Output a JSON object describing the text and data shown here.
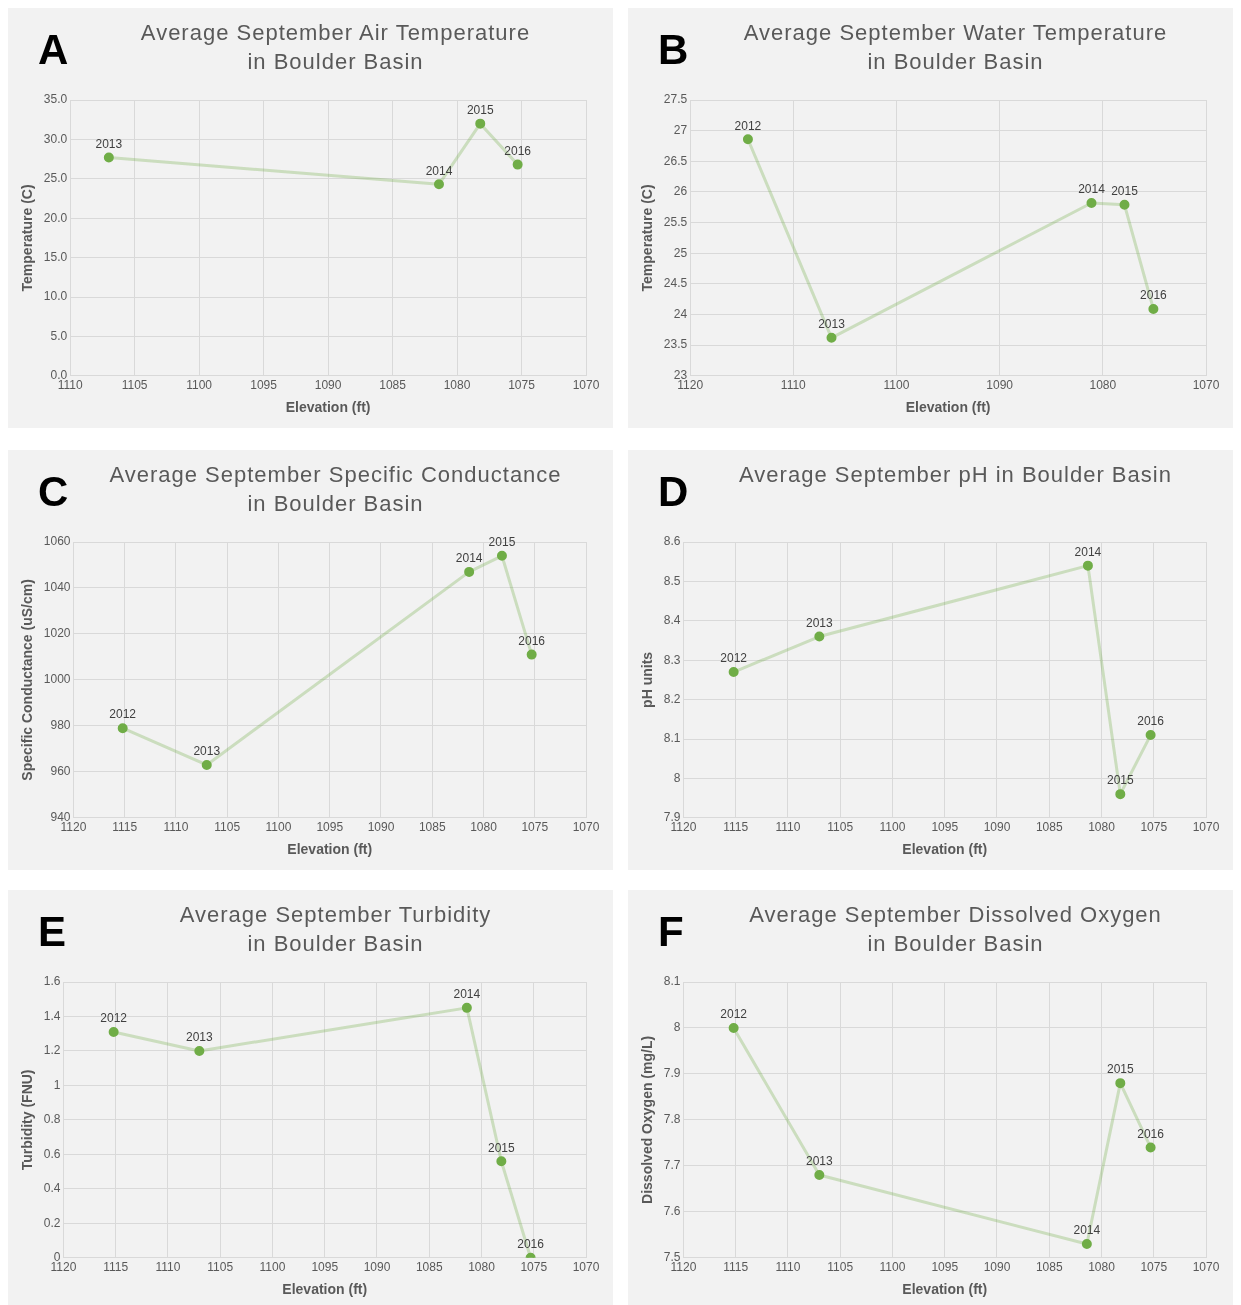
{
  "chart_data": [
    {
      "type": "line",
      "title": "Average September Air Temperature\nin Boulder Basin",
      "xlabel": "Elevation (ft)",
      "ylabel": "Temperature (C)",
      "xlim": [
        1110,
        1070
      ],
      "xticks": [
        1110,
        1105,
        1100,
        1095,
        1090,
        1085,
        1080,
        1075,
        1070
      ],
      "ylim": [
        0,
        35
      ],
      "yticks": [
        {
          "value": 0,
          "label": "0.0"
        },
        {
          "value": 5,
          "label": "5.0"
        },
        {
          "value": 10,
          "label": "10.0"
        },
        {
          "value": 15,
          "label": "15.0"
        },
        {
          "value": 20,
          "label": "20.0"
        },
        {
          "value": 25,
          "label": "25.0"
        },
        {
          "value": 30,
          "label": "30.0"
        },
        {
          "value": 35,
          "label": "35.0"
        }
      ],
      "grid": true,
      "marker": "circle",
      "line_style": "solid",
      "series": [
        {
          "color": "#70ad47",
          "x": [
            1107.0,
            1081.4,
            1078.2,
            1075.3
          ],
          "values": [
            27.7,
            24.3,
            32.0,
            26.8
          ]
        }
      ],
      "annotations": [
        "A",
        {
          "text": "2013",
          "x": 1107.0,
          "y": 27.7
        },
        {
          "text": "2014",
          "x": 1081.4,
          "y": 24.3
        },
        {
          "text": "2015",
          "x": 1078.2,
          "y": 32.0
        },
        {
          "text": "2016",
          "x": 1075.3,
          "y": 26.8
        }
      ]
    },
    {
      "type": "line",
      "title": "Average September Water Temperature\nin Boulder Basin",
      "xlabel": "Elevation (ft)",
      "ylabel": "Temperature (C)",
      "xlim": [
        1120,
        1070
      ],
      "xticks": [
        1120,
        1110,
        1100,
        1090,
        1080,
        1070
      ],
      "ylim": [
        23,
        27.5
      ],
      "yticks": [
        23,
        23.5,
        24,
        24.5,
        25,
        25.5,
        26,
        26.5,
        27,
        27.5
      ],
      "grid": true,
      "marker": "circle",
      "line_style": "solid",
      "series": [
        {
          "color": "#70ad47",
          "x": [
            1114.4,
            1106.3,
            1081.1,
            1077.9,
            1075.1
          ],
          "values": [
            26.86,
            23.62,
            25.82,
            25.79,
            24.09
          ]
        }
      ],
      "annotations": [
        "B",
        {
          "text": "2012",
          "x": 1114.4,
          "y": 26.86
        },
        {
          "text": "2013",
          "x": 1106.3,
          "y": 23.62
        },
        {
          "text": "2014",
          "x": 1081.1,
          "y": 25.82
        },
        {
          "text": "2015",
          "x": 1077.9,
          "y": 25.79
        },
        {
          "text": "2016",
          "x": 1075.1,
          "y": 24.09
        }
      ]
    },
    {
      "type": "line",
      "title": "Average September Specific Conductance\nin Boulder Basin",
      "xlabel": "Elevation (ft)",
      "ylabel": "Specific Conductance (uS/cm)",
      "xlim": [
        1120,
        1070
      ],
      "xticks": [
        1120,
        1115,
        1110,
        1105,
        1100,
        1095,
        1090,
        1085,
        1080,
        1075,
        1070
      ],
      "ylim": [
        940,
        1060
      ],
      "yticks": [
        940,
        960,
        980,
        1000,
        1020,
        1040,
        1060
      ],
      "grid": true,
      "marker": "circle",
      "line_style": "solid",
      "series": [
        {
          "color": "#70ad47",
          "x": [
            1115.2,
            1107.0,
            1081.4,
            1078.2,
            1075.3
          ],
          "values": [
            979,
            963,
            1047,
            1054,
            1011
          ]
        }
      ],
      "annotations": [
        "C",
        {
          "text": "2012",
          "x": 1115.2,
          "y": 979
        },
        {
          "text": "2013",
          "x": 1107.0,
          "y": 963
        },
        {
          "text": "2014",
          "x": 1081.4,
          "y": 1047
        },
        {
          "text": "2015",
          "x": 1078.2,
          "y": 1054
        },
        {
          "text": "2016",
          "x": 1075.3,
          "y": 1011
        }
      ]
    },
    {
      "type": "line",
      "title": "Average September pH in Boulder Basin",
      "xlabel": "Elevation (ft)",
      "ylabel": "pH units",
      "xlim": [
        1120,
        1070
      ],
      "xticks": [
        1120,
        1115,
        1110,
        1105,
        1100,
        1095,
        1090,
        1085,
        1080,
        1075,
        1070
      ],
      "ylim": [
        7.9,
        8.6
      ],
      "yticks": [
        7.9,
        8,
        8.1,
        8.2,
        8.3,
        8.4,
        8.5,
        8.6
      ],
      "grid": true,
      "marker": "circle",
      "line_style": "solid",
      "series": [
        {
          "color": "#70ad47",
          "x": [
            1115.2,
            1107.0,
            1081.3,
            1078.2,
            1075.3
          ],
          "values": [
            8.27,
            8.36,
            8.54,
            7.96,
            8.11
          ]
        }
      ],
      "annotations": [
        "D",
        {
          "text": "2012",
          "x": 1115.2,
          "y": 8.27
        },
        {
          "text": "2013",
          "x": 1107.0,
          "y": 8.36
        },
        {
          "text": "2014",
          "x": 1081.3,
          "y": 8.54
        },
        {
          "text": "2015",
          "x": 1078.2,
          "y": 7.96
        },
        {
          "text": "2016",
          "x": 1075.3,
          "y": 8.11
        }
      ]
    },
    {
      "type": "line",
      "title": "Average September Turbidity\nin Boulder Basin",
      "xlabel": "Elevation (ft)",
      "ylabel": "Turbidity (FNU)",
      "xlim": [
        1120,
        1070
      ],
      "xticks": [
        1120,
        1115,
        1110,
        1105,
        1100,
        1095,
        1090,
        1085,
        1080,
        1075,
        1070
      ],
      "ylim": [
        0,
        1.6
      ],
      "yticks": [
        0,
        0.2,
        0.4,
        0.6,
        0.8,
        1,
        1.2,
        1.4,
        1.6
      ],
      "grid": true,
      "marker": "circle",
      "line_style": "solid",
      "series": [
        {
          "color": "#70ad47",
          "x": [
            1115.2,
            1107.0,
            1081.4,
            1078.1,
            1075.3
          ],
          "values": [
            1.31,
            1.2,
            1.45,
            0.56,
            0.0
          ]
        }
      ],
      "annotations": [
        "E",
        {
          "text": "2012",
          "x": 1115.2,
          "y": 1.31
        },
        {
          "text": "2013",
          "x": 1107.0,
          "y": 1.2
        },
        {
          "text": "2014",
          "x": 1081.4,
          "y": 1.45
        },
        {
          "text": "2015",
          "x": 1078.1,
          "y": 0.56
        },
        {
          "text": "2016",
          "x": 1075.3,
          "y": 0.0
        }
      ]
    },
    {
      "type": "line",
      "title": "Average September Dissolved Oxygen\nin Boulder Basin",
      "xlabel": "Elevation (ft)",
      "ylabel": "Dissolved Oxygen (mg/L)",
      "xlim": [
        1120,
        1070
      ],
      "xticks": [
        1120,
        1115,
        1110,
        1105,
        1100,
        1095,
        1090,
        1085,
        1080,
        1075,
        1070
      ],
      "ylim": [
        7.5,
        8.1
      ],
      "yticks": [
        7.5,
        7.6,
        7.7,
        7.8,
        7.9,
        8,
        8.1
      ],
      "grid": true,
      "marker": "circle",
      "line_style": "solid",
      "series": [
        {
          "color": "#70ad47",
          "x": [
            1115.2,
            1107.0,
            1081.4,
            1078.2,
            1075.3
          ],
          "values": [
            8.0,
            7.68,
            7.53,
            7.88,
            7.74
          ]
        }
      ],
      "annotations": [
        "F",
        {
          "text": "2012",
          "x": 1115.2,
          "y": 8.0
        },
        {
          "text": "2013",
          "x": 1107.0,
          "y": 7.68
        },
        {
          "text": "2014",
          "x": 1081.4,
          "y": 7.53
        },
        {
          "text": "2015",
          "x": 1078.2,
          "y": 7.88
        },
        {
          "text": "2016",
          "x": 1075.3,
          "y": 7.74
        }
      ]
    }
  ]
}
